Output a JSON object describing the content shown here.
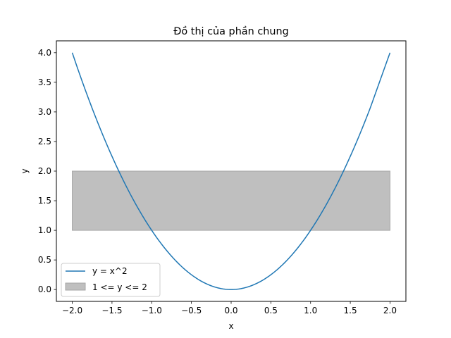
{
  "chart_data": {
    "type": "line",
    "title": "Đồ thị của phần chung",
    "xlabel": "x",
    "ylabel": "y",
    "xlim": [
      -2.2,
      2.2
    ],
    "ylim": [
      -0.2,
      4.2
    ],
    "xticks": [
      -2.0,
      -1.5,
      -1.0,
      -0.5,
      0.0,
      0.5,
      1.0,
      1.5,
      2.0
    ],
    "xtick_labels": [
      "−2.0",
      "−1.5",
      "−1.0",
      "−0.5",
      "0.0",
      "0.5",
      "1.0",
      "1.5",
      "2.0"
    ],
    "yticks": [
      0.0,
      0.5,
      1.0,
      1.5,
      2.0,
      2.5,
      3.0,
      3.5,
      4.0
    ],
    "ytick_labels": [
      "0.0",
      "0.5",
      "1.0",
      "1.5",
      "2.0",
      "2.5",
      "3.0",
      "3.5",
      "4.0"
    ],
    "grid": false,
    "legend_position": "lower-left",
    "series": [
      {
        "name": "y = x^2",
        "kind": "line",
        "color": "#1f77b4",
        "x": [
          -2.0,
          -1.75,
          -1.5,
          -1.25,
          -1.0,
          -0.75,
          -0.5,
          -0.25,
          0.0,
          0.25,
          0.5,
          0.75,
          1.0,
          1.25,
          1.5,
          1.75,
          2.0
        ],
        "y": [
          4.0,
          3.0625,
          2.25,
          1.5625,
          1.0,
          0.5625,
          0.25,
          0.0625,
          0.0,
          0.0625,
          0.25,
          0.5625,
          1.0,
          1.5625,
          2.25,
          3.0625,
          4.0
        ]
      },
      {
        "name": "1 <= y <= 2",
        "kind": "fill_between",
        "color": "#bfbfbf",
        "edge_color": "#a6a6a6",
        "x": [
          -2.0,
          2.0
        ],
        "y_low": 1.0,
        "y_high": 2.0
      }
    ]
  }
}
